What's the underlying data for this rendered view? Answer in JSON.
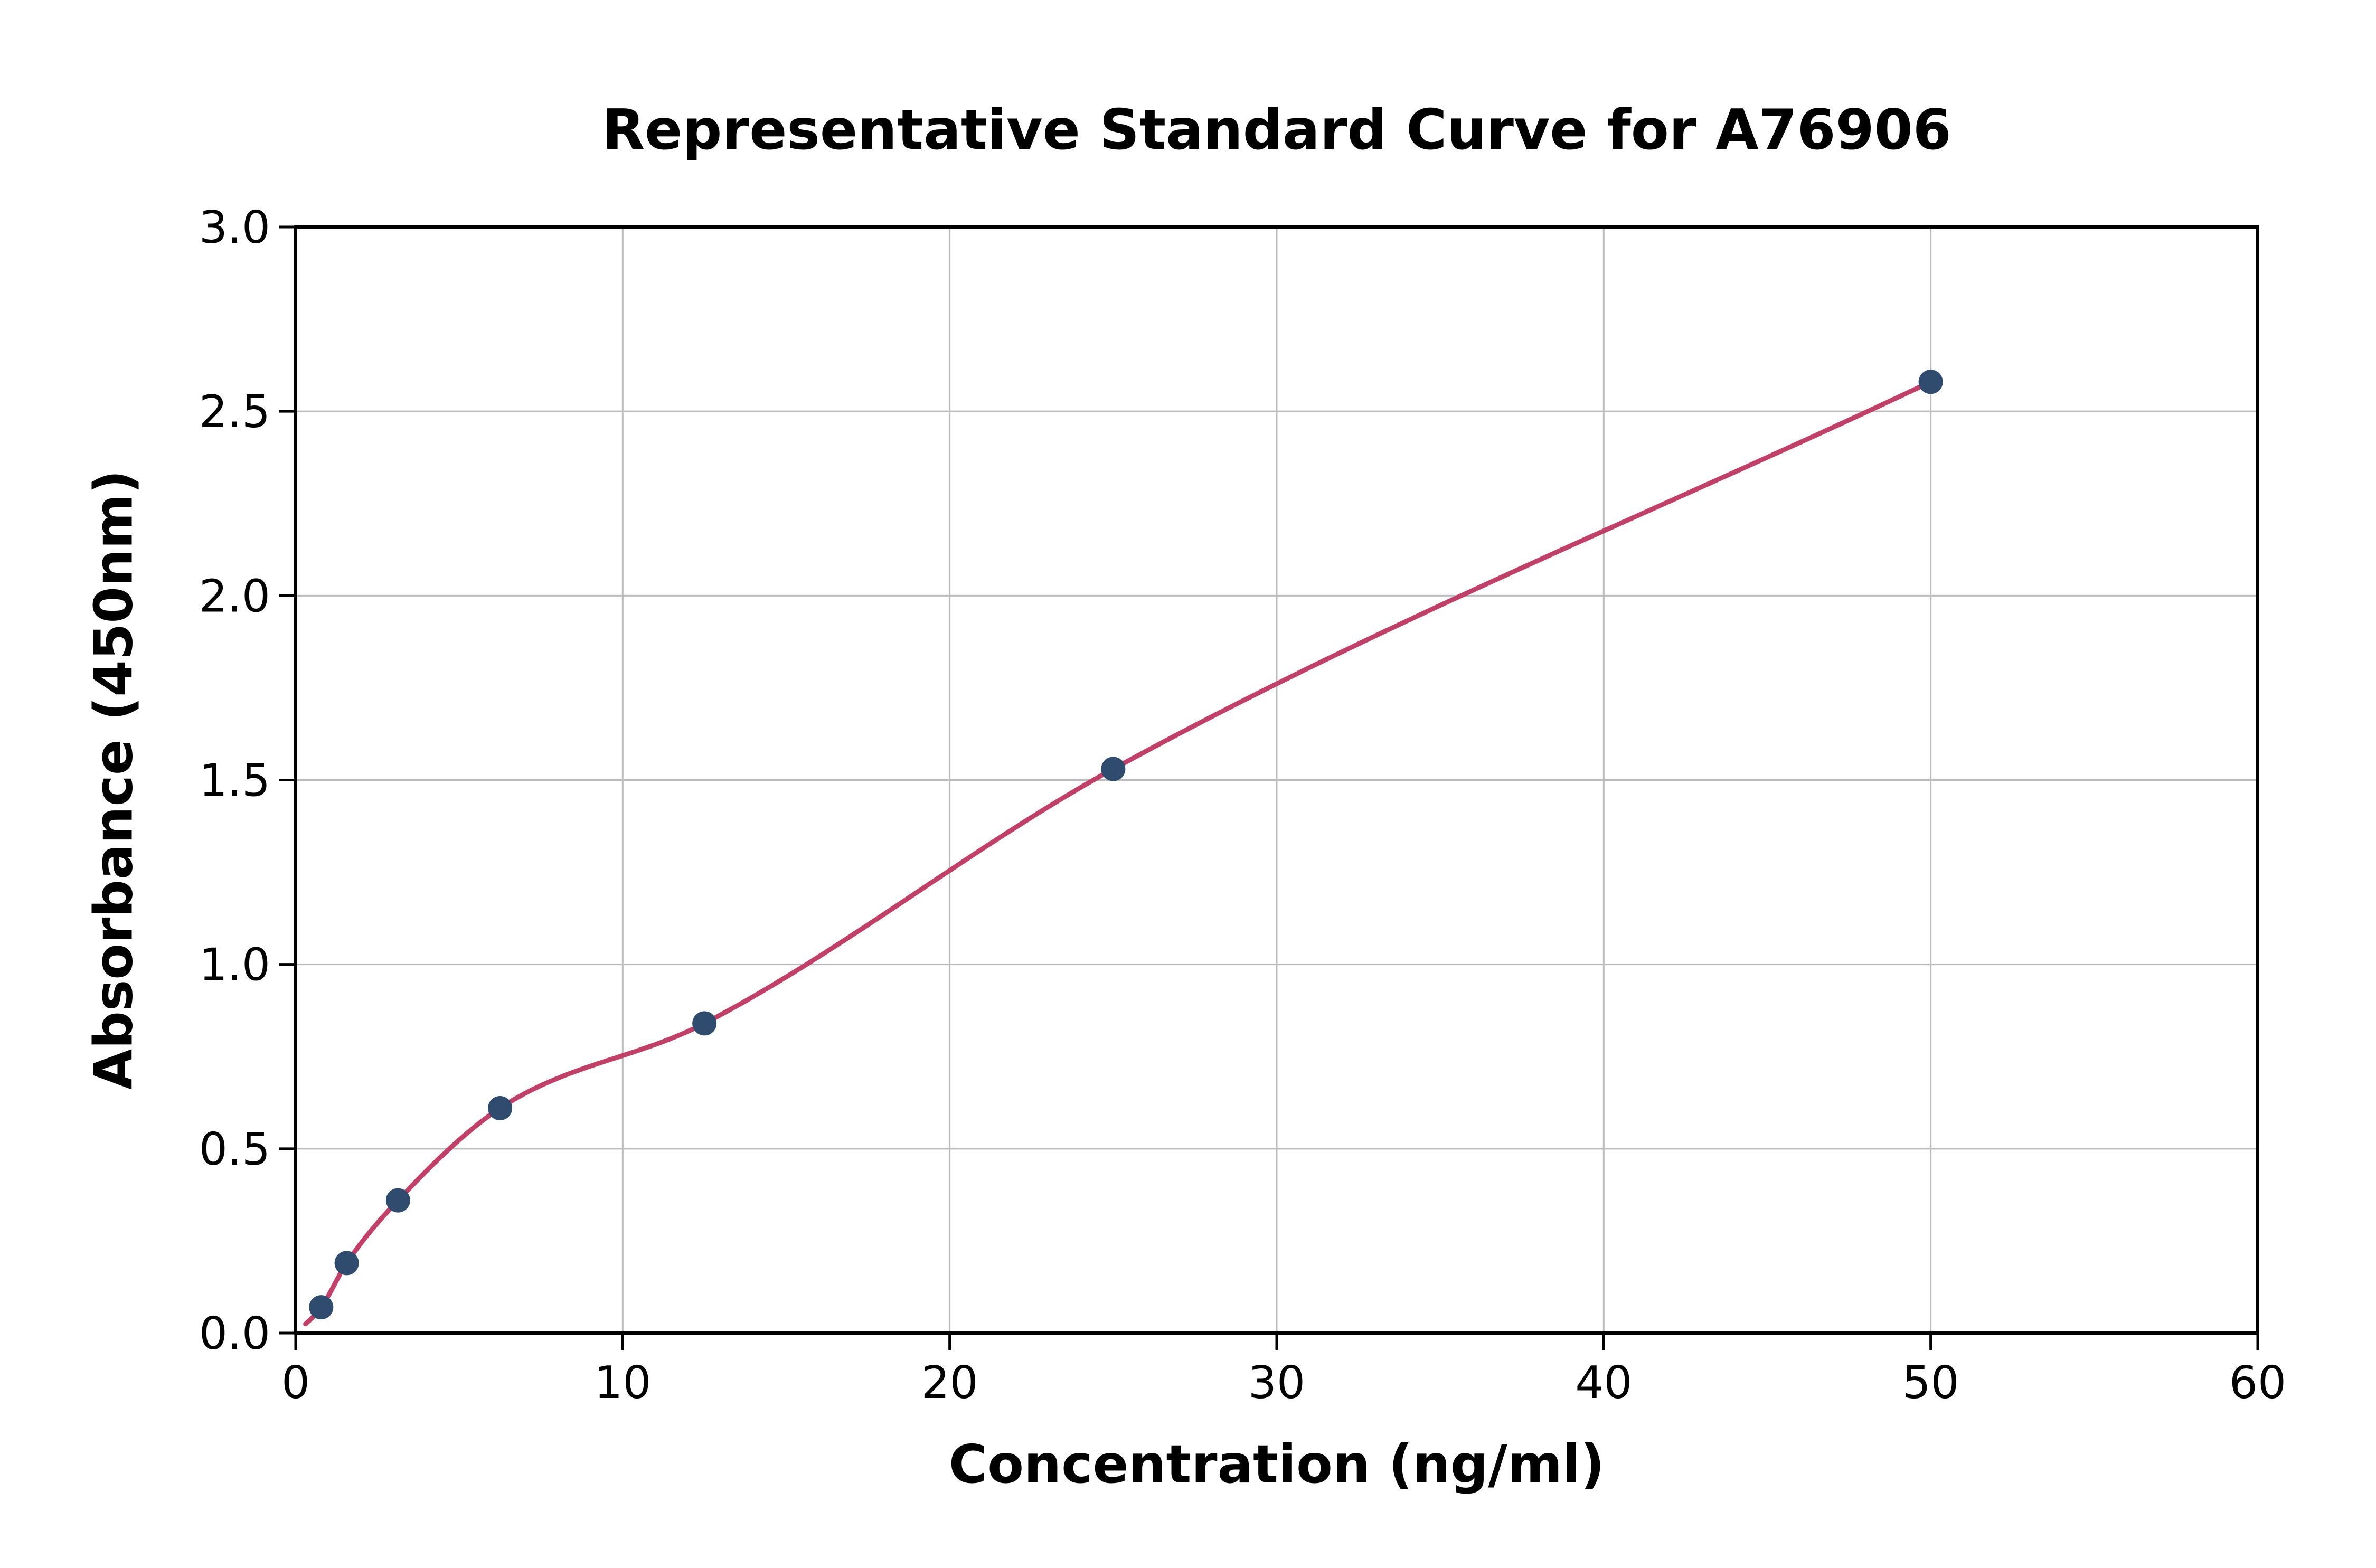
{
  "figure": {
    "background": "#ffffff"
  },
  "chart_data": {
    "type": "scatter",
    "title": "Representative Standard Curve for A76906",
    "xlabel": "Concentration (ng/ml)",
    "ylabel": "Absorbance (450nm)",
    "xlim": [
      0,
      60
    ],
    "ylim": [
      0,
      3.0
    ],
    "x_ticks": [
      0,
      10,
      20,
      30,
      40,
      50,
      60
    ],
    "x_tick_labels": [
      "0",
      "10",
      "20",
      "30",
      "40",
      "50",
      "60"
    ],
    "y_ticks": [
      0,
      0.5,
      1.0,
      1.5,
      2.0,
      2.5,
      3.0
    ],
    "y_tick_labels": [
      "0.0",
      "0.5",
      "1.0",
      "1.5",
      "2.0",
      "2.5",
      "3.0"
    ],
    "grid": true,
    "legend": "none",
    "series": [
      {
        "name": "standards",
        "points": [
          {
            "x": 0.78,
            "y": 0.07
          },
          {
            "x": 1.56,
            "y": 0.19
          },
          {
            "x": 3.13,
            "y": 0.36
          },
          {
            "x": 6.25,
            "y": 0.61
          },
          {
            "x": 12.5,
            "y": 0.84
          },
          {
            "x": 25,
            "y": 1.53
          },
          {
            "x": 50,
            "y": 2.58
          }
        ]
      }
    ],
    "fit_curve": {
      "name": "standard-curve-fit",
      "starts_at_origin": true,
      "x_start": 0.3,
      "x_end": 50
    },
    "colors": {
      "point": "#2f4b6e",
      "curve": "#c23f68",
      "grid": "#bbbbbb",
      "axis": "#000000",
      "text": "#000000"
    }
  }
}
